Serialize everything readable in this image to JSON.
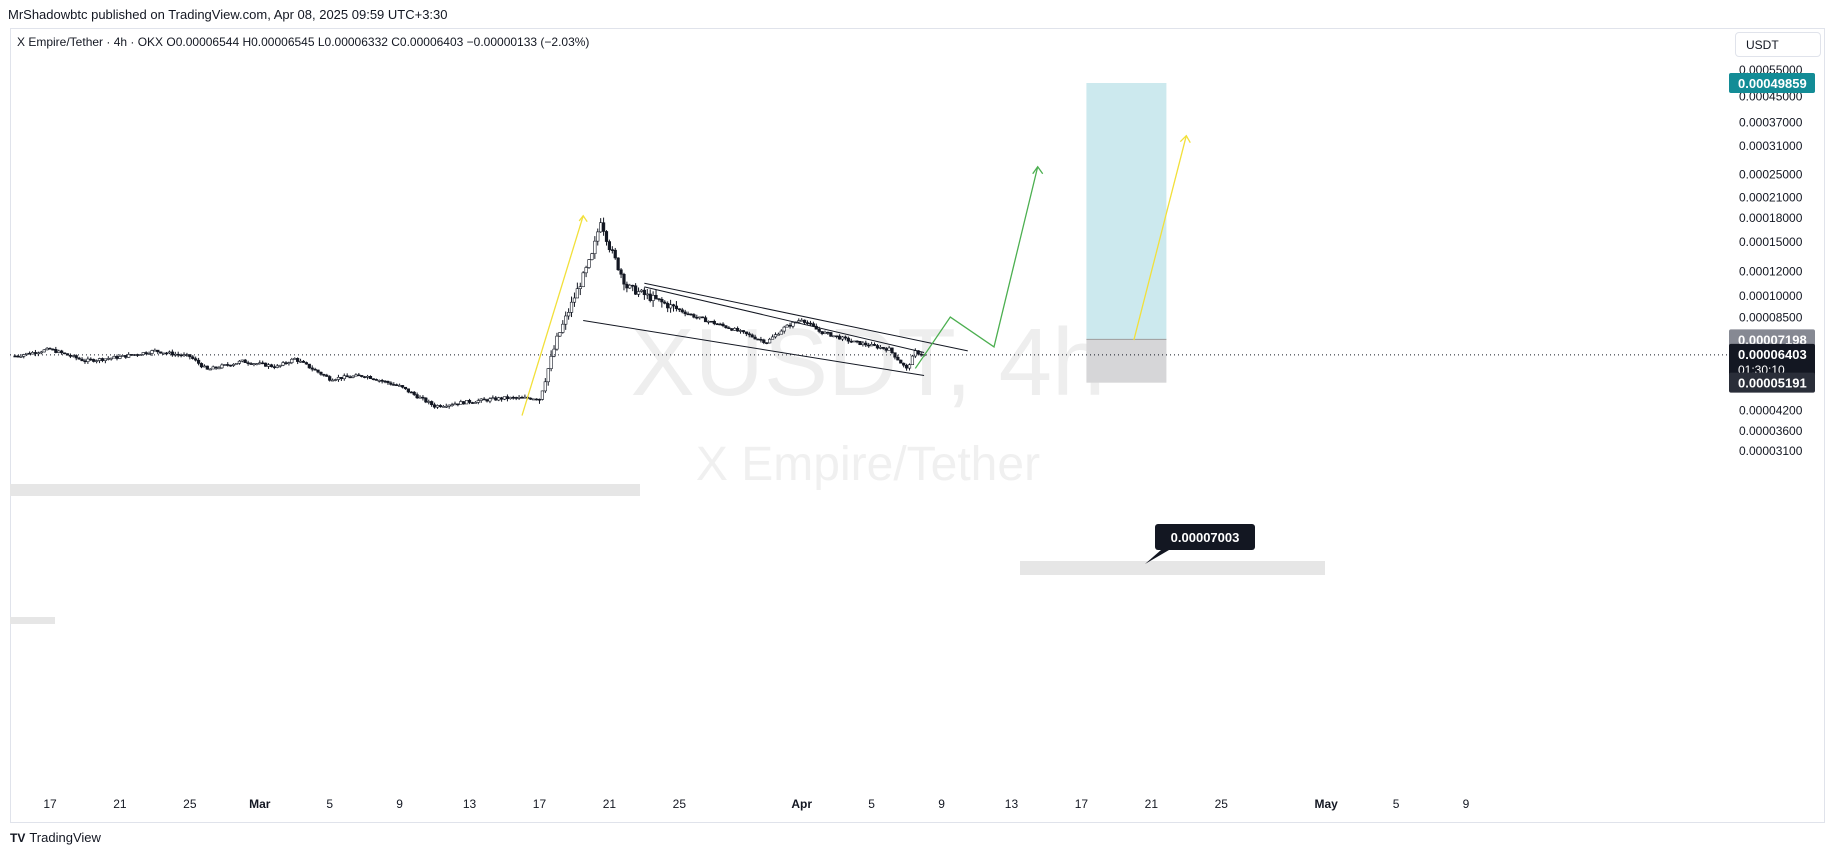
{
  "header": {
    "publisher": "MrShadowbtc published on TradingView.com, Apr 08, 2025 09:59 UTC+3:30",
    "legend": "X Empire/Tether · 4h · OKX  O0.00006544  H0.00006545  L0.00006332  C0.00006403  −0.00000133 (−2.03%)",
    "currency": "USDT"
  },
  "footer": {
    "brand": "TradingView",
    "logo_mark": "TV"
  },
  "watermark": {
    "symbol": "XUSDT, 4h",
    "name": "X Empire/Tether"
  },
  "chart_data": {
    "type": "candlestick",
    "symbol": "XUSDT",
    "interval": "4h",
    "exchange": "OKX",
    "ohlc": {
      "open": 6.544e-05,
      "high": 6.545e-05,
      "low": 6.332e-05,
      "close": 6.403e-05,
      "change": -1.33e-06,
      "change_pct": -2.03
    },
    "y_scale": "log",
    "y_ticks": [
      0.00055,
      0.00045,
      0.00037,
      0.00031,
      0.00025,
      0.00021,
      0.00018,
      0.00015,
      0.00012,
      0.0001,
      8.5e-05,
      4.2e-05,
      3.6e-05,
      3.1e-05
    ],
    "y_tick_labels": [
      "0.00055000",
      "0.00045000",
      "0.00037000",
      "0.00031000",
      "0.00025000",
      "0.00021000",
      "0.00018000",
      "0.00015000",
      "0.00012000",
      "0.00010000",
      "0.00008500",
      "0.00004200",
      "0.00003600",
      "0.00003100"
    ],
    "x_tick_labels": [
      {
        "label": "17",
        "date": "2025-02-17"
      },
      {
        "label": "21",
        "date": "2025-02-21"
      },
      {
        "label": "25",
        "date": "2025-02-25"
      },
      {
        "label": "Mar",
        "date": "2025-03-01"
      },
      {
        "label": "5",
        "date": "2025-03-05"
      },
      {
        "label": "9",
        "date": "2025-03-09"
      },
      {
        "label": "13",
        "date": "2025-03-13"
      },
      {
        "label": "17",
        "date": "2025-03-17"
      },
      {
        "label": "21",
        "date": "2025-03-21"
      },
      {
        "label": "25",
        "date": "2025-03-25"
      },
      {
        "label": "Apr",
        "date": "2025-04-01"
      },
      {
        "label": "5",
        "date": "2025-04-05"
      },
      {
        "label": "9",
        "date": "2025-04-09"
      },
      {
        "label": "13",
        "date": "2025-04-13"
      },
      {
        "label": "17",
        "date": "2025-04-17"
      },
      {
        "label": "21",
        "date": "2025-04-21"
      },
      {
        "label": "25",
        "date": "2025-04-25"
      },
      {
        "label": "May",
        "date": "2025-05-01"
      },
      {
        "label": "5",
        "date": "2025-05-05"
      },
      {
        "label": "9",
        "date": "2025-05-09"
      }
    ],
    "price_path": [
      {
        "date": "2025-02-15",
        "price": 6.35e-05
      },
      {
        "date": "2025-02-17",
        "price": 6.68e-05
      },
      {
        "date": "2025-02-19",
        "price": 6.12e-05
      },
      {
        "date": "2025-02-21",
        "price": 6.3e-05
      },
      {
        "date": "2025-02-23",
        "price": 6.6e-05
      },
      {
        "date": "2025-02-25",
        "price": 6.32e-05
      },
      {
        "date": "2025-02-26",
        "price": 5.72e-05
      },
      {
        "date": "2025-02-28",
        "price": 6.1e-05
      },
      {
        "date": "2025-03-02",
        "price": 5.85e-05
      },
      {
        "date": "2025-03-03",
        "price": 6.22e-05
      },
      {
        "date": "2025-03-05",
        "price": 5.35e-05
      },
      {
        "date": "2025-03-07",
        "price": 5.48e-05
      },
      {
        "date": "2025-03-09",
        "price": 5.05e-05
      },
      {
        "date": "2025-03-11",
        "price": 4.35e-05
      },
      {
        "date": "2025-03-13",
        "price": 4.5e-05
      },
      {
        "date": "2025-03-15",
        "price": 4.62e-05
      },
      {
        "date": "2025-03-17",
        "price": 4.62e-05
      },
      {
        "date": "2025-03-18",
        "price": 7.2e-05
      },
      {
        "date": "2025-03-19",
        "price": 9.9e-05
      },
      {
        "date": "2025-03-20",
        "price": 0.000135
      },
      {
        "date": "2025-03-20T12",
        "price": 0.000178
      },
      {
        "date": "2025-03-21",
        "price": 0.000145
      },
      {
        "date": "2025-03-22",
        "price": 0.000107
      },
      {
        "date": "2025-03-24",
        "price": 9.5e-05
      },
      {
        "date": "2025-03-26",
        "price": 8.5e-05
      },
      {
        "date": "2025-03-28",
        "price": 7.8e-05
      },
      {
        "date": "2025-03-30",
        "price": 7.05e-05
      },
      {
        "date": "2025-03-31",
        "price": 7.85e-05
      },
      {
        "date": "2025-04-01",
        "price": 8.4e-05
      },
      {
        "date": "2025-04-02",
        "price": 7.65e-05
      },
      {
        "date": "2025-04-04",
        "price": 7.05e-05
      },
      {
        "date": "2025-04-06",
        "price": 6.68e-05
      },
      {
        "date": "2025-04-07",
        "price": 5.75e-05
      },
      {
        "date": "2025-04-07T12",
        "price": 6.55e-05
      },
      {
        "date": "2025-04-08",
        "price": 6.4e-05
      }
    ],
    "horizontal_levels": [
      {
        "label": "0.00049859",
        "value": 0.00049859,
        "color": "#138c96",
        "text_color": "#ffffff"
      },
      {
        "label": "0.00007198",
        "value": 7.198e-05,
        "color": "#868993",
        "text_color": "#ffffff"
      },
      {
        "label": "0.00006403",
        "value": 6.403e-05,
        "color": "#131722",
        "text_color": "#ffffff",
        "countdown": "01:30:10"
      },
      {
        "label": "0.00005191",
        "value": 5.191e-05,
        "color": "#2a2e39",
        "text_color": "#ffffff"
      }
    ],
    "callout": {
      "label": "0.00007003",
      "value": 7.003e-05
    },
    "position": {
      "entry": 7.198e-05,
      "target": 0.00049859,
      "stop": 5.191e-05,
      "start": "2025-04-17",
      "end": "2025-04-21",
      "profit_color": "#cce9ee",
      "loss_color": "#d6d6d8"
    },
    "colors": {
      "up": "#ffffff",
      "down": "#131722",
      "wick": "#131722",
      "projection_green": "#4caf50",
      "projection_yellow": "#f2e03a",
      "channel": "#131722",
      "zone": "#e6e6e6"
    }
  }
}
